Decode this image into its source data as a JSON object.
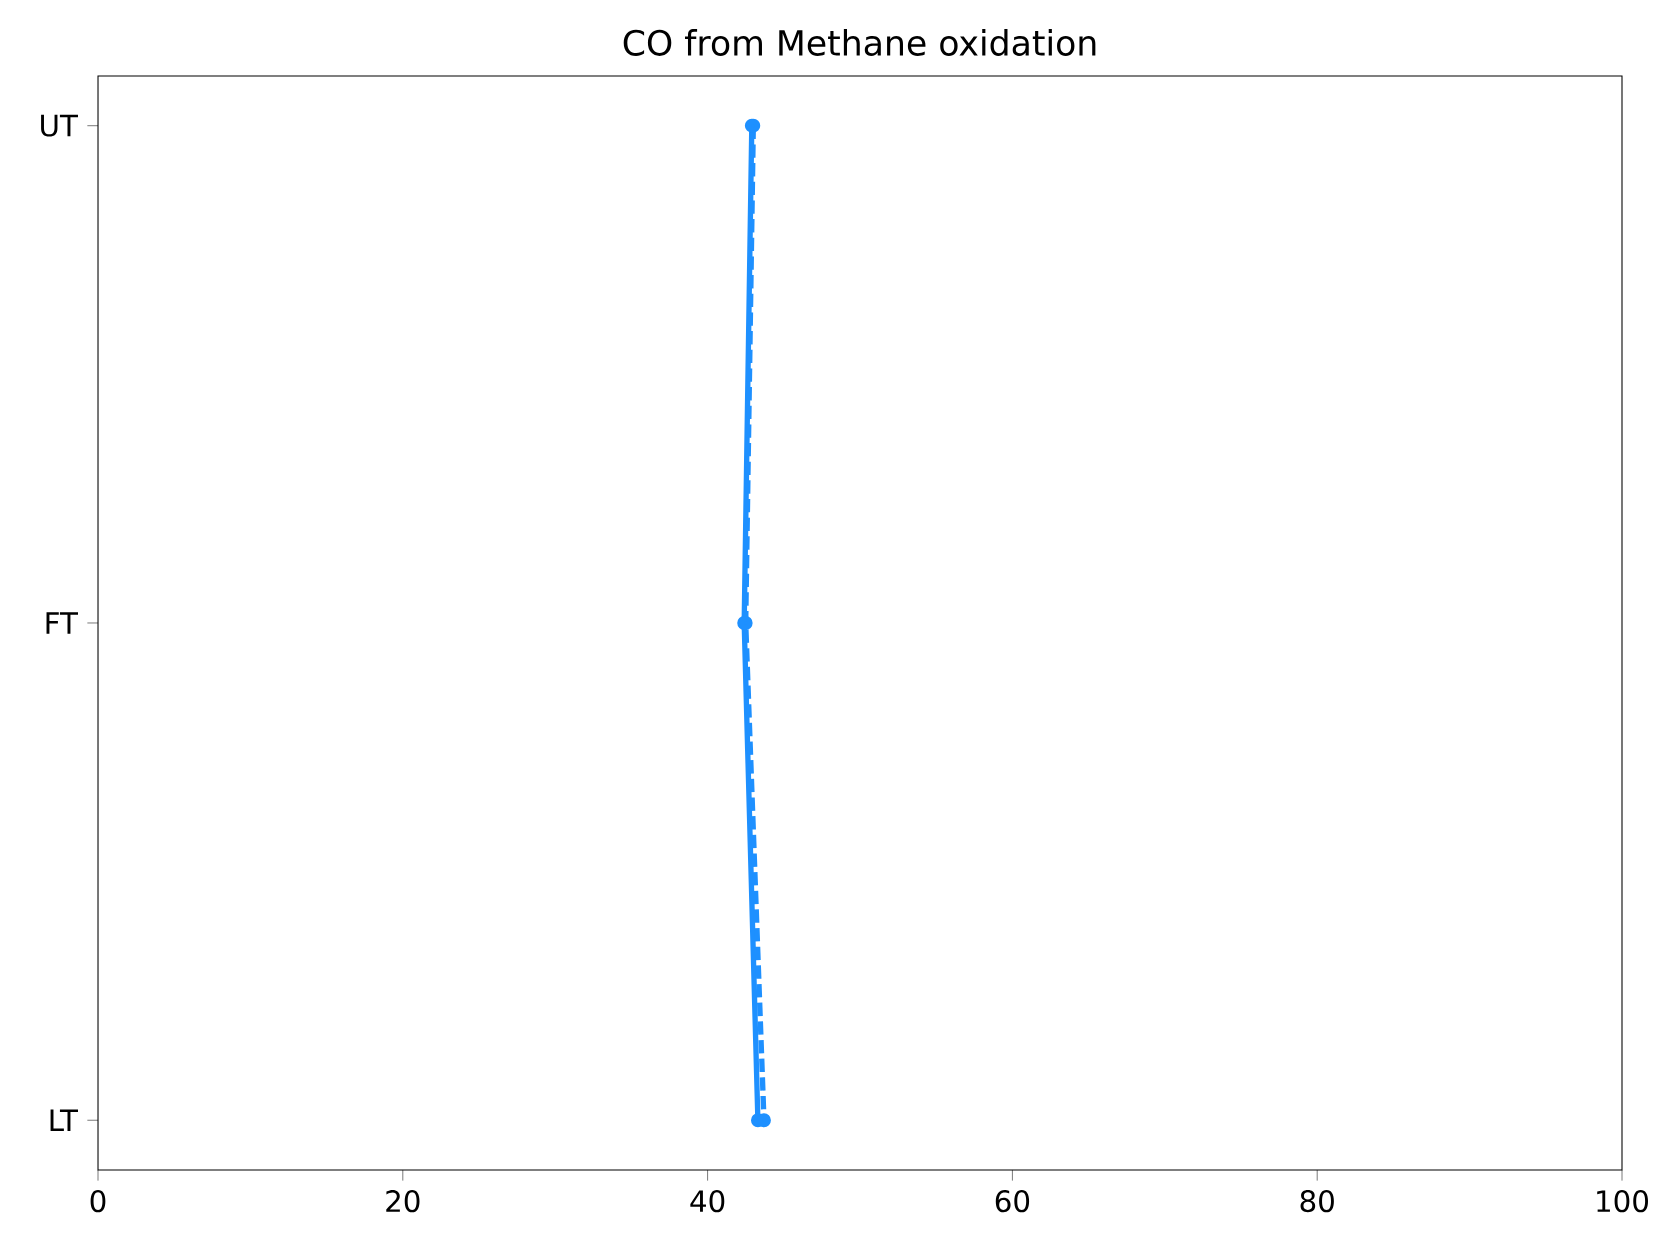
{
  "chart_data": {
    "type": "line",
    "orientation": "horizontal",
    "title": "CO from Methane oxidation",
    "categories": [
      "UT",
      "FT",
      "LT"
    ],
    "series": [
      {
        "color": "#1e90ff",
        "values": [
          42.9,
          42.4,
          43.3
        ]
      },
      {
        "color": "#1e90ff",
        "values": [
          43.0,
          42.5,
          43.7
        ],
        "line_style": "dashed"
      }
    ],
    "xlim": [
      0,
      100
    ],
    "xticks": [
      0,
      20,
      40,
      60,
      80,
      100
    ],
    "marker": "circle"
  }
}
